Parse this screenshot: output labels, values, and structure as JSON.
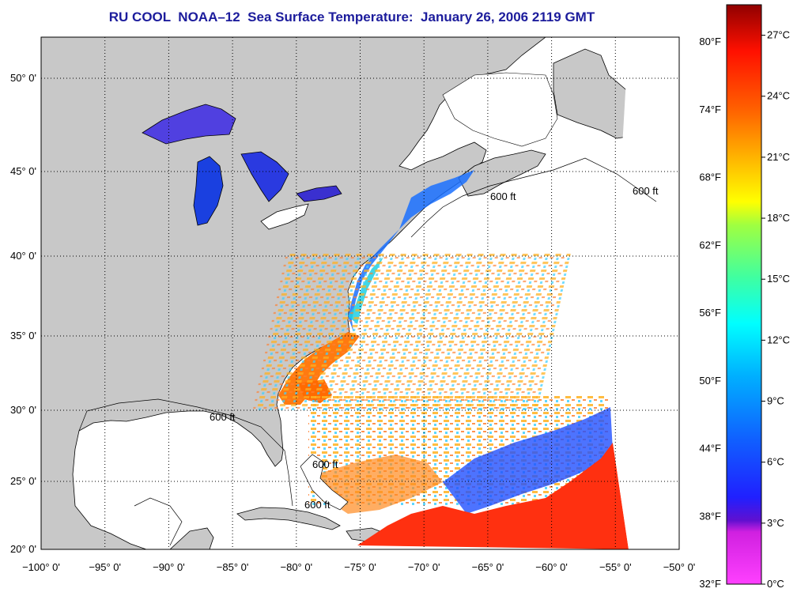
{
  "title": "RU COOL  NOAA–12  Sea Surface Temperature:  January 26, 2006 2119 GMT",
  "map": {
    "lon_range": [
      -100,
      -50
    ],
    "lat_range": [
      20,
      52.5
    ],
    "lon_ticks": [
      "−100° 0'",
      "−95° 0'",
      "−90° 0'",
      "−85° 0'",
      "−80° 0'",
      "−75° 0'",
      "−70° 0'",
      "−65° 0'",
      "−60° 0'",
      "−55° 0'",
      "−50° 0'"
    ],
    "lat_ticks": [
      "20° 0'",
      "25° 0'",
      "30° 0'",
      "35° 0'",
      "40° 0'",
      "45° 0'",
      "50° 0'"
    ],
    "isobath_label": "600 ft",
    "colors": {
      "land": "#c8c8c8",
      "cloud": "#ffffff",
      "grid": "#000000"
    }
  },
  "colorbar": {
    "fahrenheit_labels": [
      "80°F",
      "74°F",
      "68°F",
      "62°F",
      "56°F",
      "50°F",
      "44°F",
      "38°F",
      "32°F"
    ],
    "celsius_labels": [
      "27°C",
      "24°C",
      "21°C",
      "18°C",
      "15°C",
      "12°C",
      "9°C",
      "6°C",
      "3°C",
      "0°C"
    ],
    "range_c": [
      0,
      28.5
    ]
  }
}
